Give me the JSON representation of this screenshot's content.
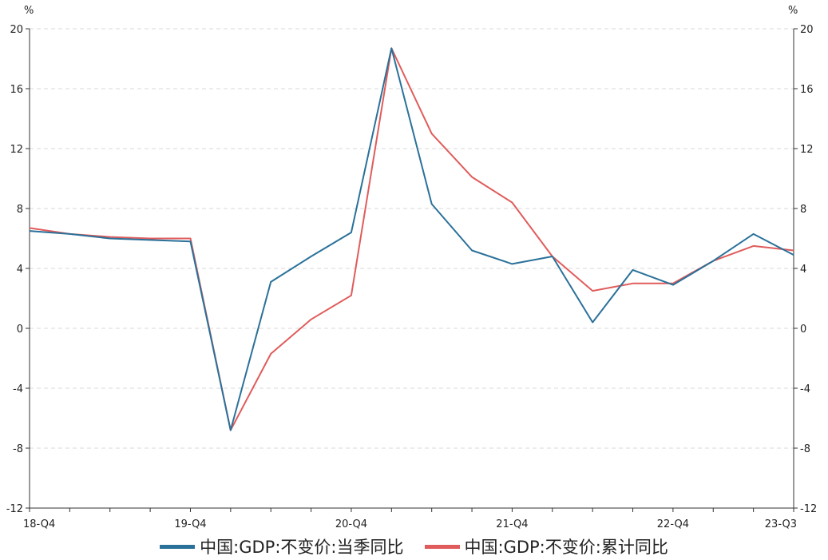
{
  "chart_data": {
    "type": "line",
    "left_unit": "%",
    "right_unit": "%",
    "x": [
      "18-Q4",
      "19-Q1",
      "19-Q2",
      "19-Q3",
      "19-Q4",
      "20-Q1",
      "20-Q2",
      "20-Q3",
      "20-Q4",
      "21-Q1",
      "21-Q2",
      "21-Q3",
      "21-Q4",
      "22-Q1",
      "22-Q2",
      "22-Q3",
      "22-Q4",
      "23-Q1",
      "23-Q2",
      "23-Q3"
    ],
    "x_tick_labels": [
      "18-Q4",
      "19-Q4",
      "20-Q4",
      "21-Q4",
      "22-Q4",
      "23-Q3"
    ],
    "ylim": [
      -12,
      20
    ],
    "yticks": [
      -12,
      -8,
      -4,
      0,
      4,
      8,
      12,
      16,
      20
    ],
    "grid": "horizontal dashed",
    "legend_position": "bottom",
    "series": [
      {
        "name": "中国:GDP:不变价:当季同比",
        "color": "#2a7199",
        "values": [
          6.5,
          6.3,
          6.0,
          5.9,
          5.8,
          -6.8,
          3.1,
          4.8,
          6.4,
          18.7,
          8.3,
          5.2,
          4.3,
          4.8,
          0.4,
          3.9,
          2.9,
          4.5,
          6.3,
          4.9
        ]
      },
      {
        "name": "中国:GDP:不变价:累计同比",
        "color": "#e05c5c",
        "values": [
          6.7,
          6.3,
          6.1,
          6.0,
          6.0,
          -6.8,
          -1.7,
          0.6,
          2.2,
          18.7,
          13.0,
          10.1,
          8.4,
          4.8,
          2.5,
          3.0,
          3.0,
          4.5,
          5.5,
          5.2
        ]
      }
    ]
  }
}
